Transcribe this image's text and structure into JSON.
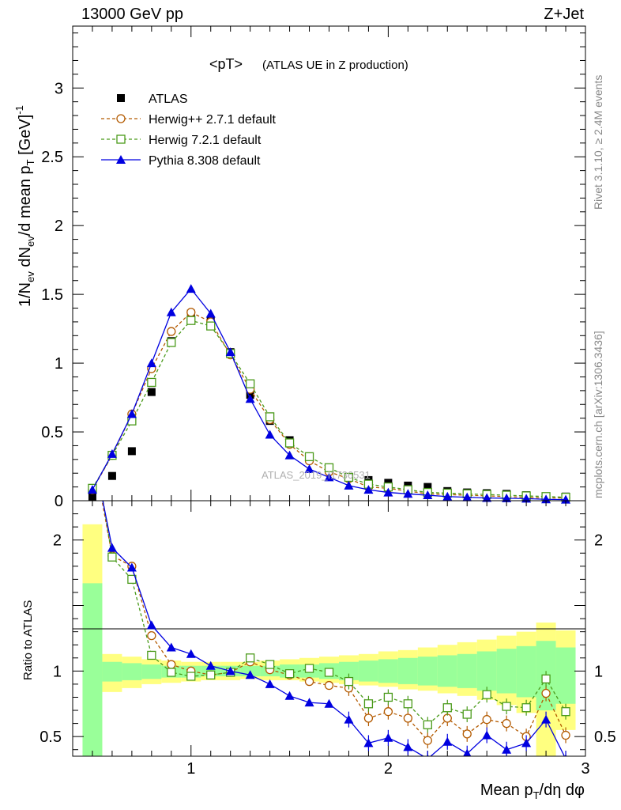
{
  "header": {
    "energy": "13000 GeV pp",
    "process": "Z+Jet"
  },
  "side": {
    "rivet": "Rivet 3.1.10, ≥ 2.4M events",
    "mcplots": "mcplots.cern.ch [arXiv:1306.3436]"
  },
  "watermark": "ATLAS_2019_I1736531",
  "chart_data": [
    {
      "type": "scatter",
      "title": "<pT>",
      "subtitle": "(ATLAS UE in Z production)",
      "ylabel": "1/N_ev dN_ev/d mean p_T [GeV]^-1",
      "xlim": [
        0.4,
        3.0
      ],
      "ylim": [
        0,
        3.45
      ],
      "yticks": [
        0,
        0.5,
        1,
        1.5,
        2,
        2.5,
        3
      ],
      "ytick_labels": [
        "0",
        "0.5",
        "1",
        "1.5",
        "2",
        "2.5",
        "3"
      ],
      "legend_position": "top-left",
      "x": [
        0.5,
        0.6,
        0.7,
        0.8,
        0.9,
        1.0,
        1.1,
        1.2,
        1.3,
        1.4,
        1.5,
        1.6,
        1.7,
        1.8,
        1.9,
        2.0,
        2.1,
        2.2,
        2.3,
        2.4,
        2.5,
        2.6,
        2.7,
        2.8,
        2.9
      ],
      "series": [
        {
          "name": "ATLAS",
          "color": "#000000",
          "marker": "square-filled",
          "values": [
            0.03,
            0.18,
            0.36,
            0.79,
            1.16,
            1.36,
            1.31,
            1.08,
            0.77,
            0.58,
            0.44,
            0.31,
            0.24,
            0.17,
            0.15,
            0.13,
            0.11,
            0.1,
            0.07,
            0.06,
            0.055,
            0.05,
            0.04,
            0.03,
            0.03
          ]
        },
        {
          "name": "Herwig++ 2.7.1 default",
          "color": "#b35a00",
          "marker": "circle-open",
          "dashed": true,
          "values": [
            0.08,
            0.33,
            0.63,
            0.96,
            1.23,
            1.37,
            1.3,
            1.06,
            0.81,
            0.59,
            0.41,
            0.29,
            0.21,
            0.16,
            0.1,
            0.09,
            0.07,
            0.05,
            0.045,
            0.04,
            0.035,
            0.03,
            0.025,
            0.02,
            0.02
          ]
        },
        {
          "name": "Herwig 7.2.1 default",
          "color": "#4a9a1a",
          "marker": "square-open",
          "dashed": true,
          "values": [
            0.09,
            0.33,
            0.58,
            0.86,
            1.15,
            1.31,
            1.27,
            1.07,
            0.85,
            0.61,
            0.42,
            0.32,
            0.24,
            0.17,
            0.12,
            0.1,
            0.08,
            0.06,
            0.055,
            0.05,
            0.045,
            0.04,
            0.035,
            0.03,
            0.025
          ]
        },
        {
          "name": "Pythia 8.308 default",
          "color": "#0000e0",
          "marker": "triangle-filled",
          "dashed": false,
          "values": [
            0.08,
            0.34,
            0.63,
            1.0,
            1.37,
            1.54,
            1.36,
            1.08,
            0.74,
            0.48,
            0.33,
            0.23,
            0.17,
            0.11,
            0.08,
            0.06,
            0.05,
            0.04,
            0.03,
            0.025,
            0.02,
            0.018,
            0.015,
            0.01,
            0.008
          ]
        }
      ]
    },
    {
      "type": "line",
      "ylabel": "Ratio to ATLAS",
      "xlabel": "Mean p_T/dη dφ",
      "xlim": [
        0.4,
        3.0
      ],
      "ylim": [
        0.35,
        2.3
      ],
      "xticks": [
        1,
        2,
        3
      ],
      "xtick_labels": [
        "1",
        "2",
        "3"
      ],
      "yticks": [
        0.5,
        1,
        2
      ],
      "ytick_labels": [
        "0.5",
        "1",
        "2"
      ],
      "bin_edges": [
        0.45,
        0.55,
        0.65,
        0.75,
        0.85,
        0.95,
        1.05,
        1.15,
        1.25,
        1.35,
        1.45,
        1.55,
        1.65,
        1.75,
        1.85,
        1.95,
        2.05,
        2.15,
        2.25,
        2.35,
        2.45,
        2.55,
        2.65,
        2.75,
        2.85,
        2.95
      ],
      "band_outer": {
        "color": "#ffff80",
        "lower": [
          0.35,
          0.84,
          0.87,
          0.9,
          0.91,
          0.92,
          0.93,
          0.93,
          0.94,
          0.93,
          0.93,
          0.92,
          0.91,
          0.9,
          0.89,
          0.88,
          0.86,
          0.85,
          0.83,
          0.81,
          0.78,
          0.74,
          0.68,
          0.35,
          0.55
        ],
        "upper": [
          2.12,
          1.13,
          1.11,
          1.09,
          1.08,
          1.07,
          1.07,
          1.07,
          1.07,
          1.08,
          1.09,
          1.1,
          1.11,
          1.12,
          1.13,
          1.15,
          1.16,
          1.18,
          1.2,
          1.22,
          1.24,
          1.27,
          1.3,
          1.37,
          1.31
        ]
      },
      "band_inner": {
        "color": "#99ff99",
        "lower": [
          0.35,
          0.92,
          0.93,
          0.94,
          0.95,
          0.95,
          0.96,
          0.96,
          0.96,
          0.96,
          0.95,
          0.95,
          0.94,
          0.93,
          0.92,
          0.91,
          0.9,
          0.89,
          0.88,
          0.87,
          0.85,
          0.83,
          0.8,
          0.7,
          0.75
        ],
        "upper": [
          1.67,
          1.07,
          1.06,
          1.05,
          1.04,
          1.04,
          1.04,
          1.04,
          1.04,
          1.04,
          1.05,
          1.05,
          1.06,
          1.07,
          1.08,
          1.09,
          1.1,
          1.11,
          1.12,
          1.13,
          1.15,
          1.17,
          1.19,
          1.23,
          1.18
        ]
      },
      "x": [
        0.5,
        0.6,
        0.7,
        0.8,
        0.9,
        1.0,
        1.1,
        1.2,
        1.3,
        1.4,
        1.5,
        1.6,
        1.7,
        1.8,
        1.9,
        2.0,
        2.1,
        2.2,
        2.3,
        2.4,
        2.5,
        2.6,
        2.7,
        2.8,
        2.9
      ],
      "series": [
        {
          "name": "Herwig++ 2.7.1 default",
          "color": "#b35a00",
          "marker": "circle-open",
          "dashed": true,
          "values": [
            2.7,
            1.88,
            1.8,
            1.27,
            1.05,
            1.0,
            0.97,
            0.99,
            1.07,
            1.01,
            0.97,
            0.92,
            0.89,
            0.87,
            0.64,
            0.69,
            0.64,
            0.47,
            0.64,
            0.52,
            0.63,
            0.6,
            0.5,
            0.83,
            0.51
          ]
        },
        {
          "name": "Herwig 7.2.1 default",
          "color": "#4a9a1a",
          "marker": "square-open",
          "dashed": true,
          "values": [
            2.8,
            1.87,
            1.7,
            1.12,
            0.99,
            0.96,
            0.97,
            0.99,
            1.1,
            1.05,
            0.98,
            1.02,
            0.99,
            0.92,
            0.75,
            0.8,
            0.75,
            0.59,
            0.72,
            0.67,
            0.82,
            0.73,
            0.72,
            0.94,
            0.69
          ]
        },
        {
          "name": "Pythia 8.308 default",
          "color": "#0000e0",
          "marker": "triangle-filled",
          "dashed": false,
          "values": [
            2.7,
            1.94,
            1.79,
            1.35,
            1.18,
            1.13,
            1.04,
            1.0,
            0.97,
            0.9,
            0.81,
            0.76,
            0.75,
            0.63,
            0.45,
            0.49,
            0.42,
            0.33,
            0.46,
            0.37,
            0.51,
            0.4,
            0.45,
            0.63,
            0.33
          ]
        }
      ]
    }
  ]
}
